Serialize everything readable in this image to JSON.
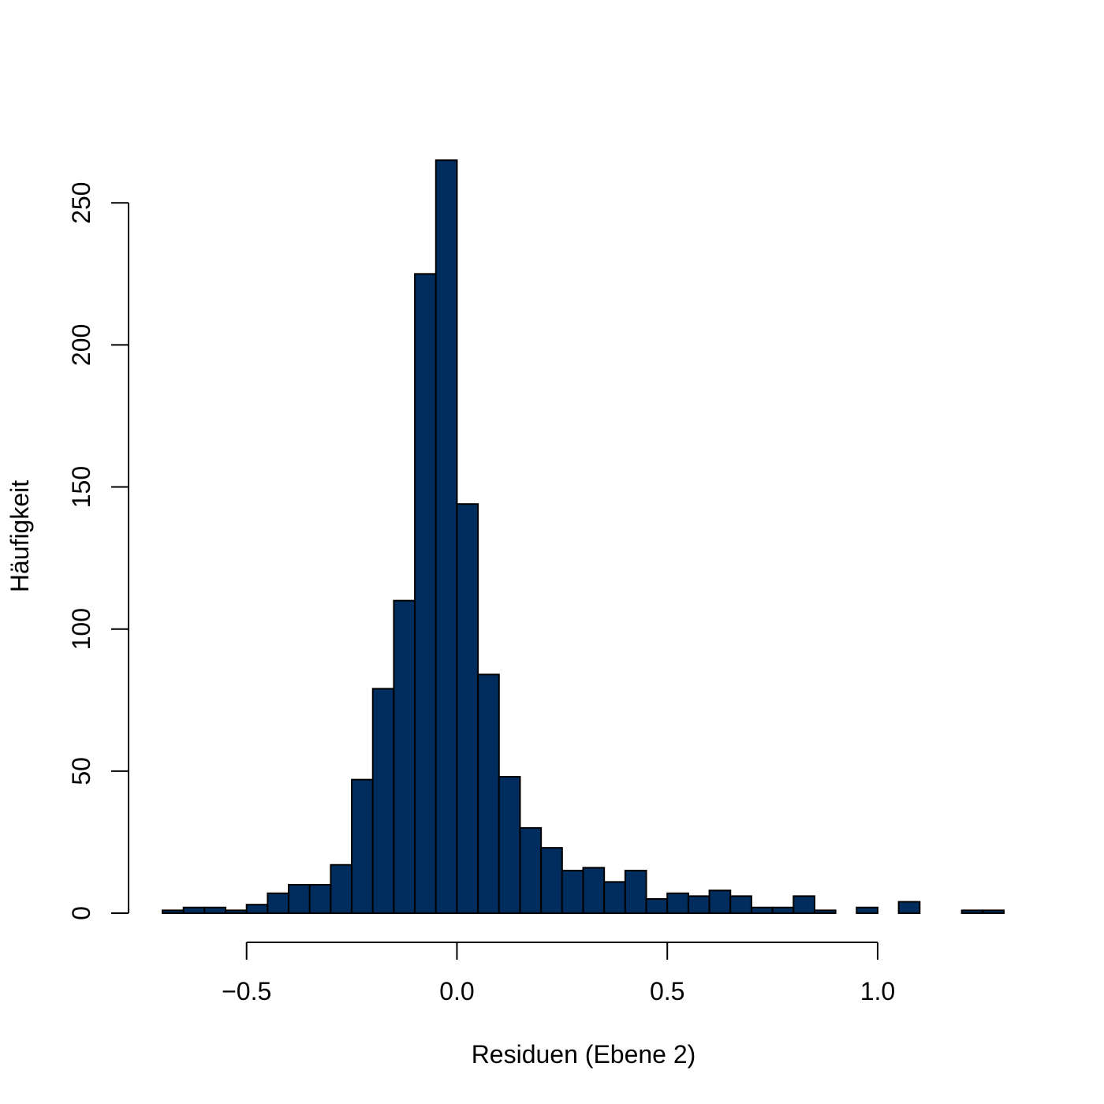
{
  "chart_data": {
    "type": "bar",
    "subtype": "histogram",
    "title": "",
    "xlabel": "Residuen (Ebene 2)",
    "ylabel": "Häufigkeit",
    "xlim": [
      -0.7,
      1.3
    ],
    "ylim": [
      0,
      265
    ],
    "bin_width": 0.05,
    "bin_edges": [
      -0.7,
      -0.65,
      -0.6,
      -0.55,
      -0.5,
      -0.45,
      -0.4,
      -0.35,
      -0.3,
      -0.25,
      -0.2,
      -0.15,
      -0.1,
      -0.05,
      0.0,
      0.05,
      0.1,
      0.15,
      0.2,
      0.25,
      0.3,
      0.35,
      0.4,
      0.45,
      0.5,
      0.55,
      0.6,
      0.65,
      0.7,
      0.75,
      0.8,
      0.85,
      0.9,
      0.95,
      1.0,
      1.05,
      1.1,
      1.15,
      1.2,
      1.25,
      1.3
    ],
    "values": [
      1,
      2,
      2,
      1,
      3,
      7,
      10,
      10,
      17,
      47,
      79,
      110,
      225,
      265,
      144,
      84,
      48,
      30,
      23,
      15,
      16,
      11,
      15,
      5,
      7,
      6,
      8,
      6,
      2,
      2,
      6,
      1,
      0,
      2,
      0,
      4,
      0,
      0,
      1,
      1
    ],
    "x_ticks": [
      -0.5,
      0.0,
      0.5,
      1.0
    ],
    "x_tick_labels": [
      "−0.5",
      "0.0",
      "0.5",
      "1.0"
    ],
    "y_ticks": [
      0,
      50,
      100,
      150,
      200,
      250
    ],
    "y_tick_labels": [
      "0",
      "50",
      "100",
      "150",
      "200",
      "250"
    ],
    "grid": false,
    "legend": "none",
    "bar_color": "#002d5d",
    "bar_edge_color": "#000000"
  }
}
